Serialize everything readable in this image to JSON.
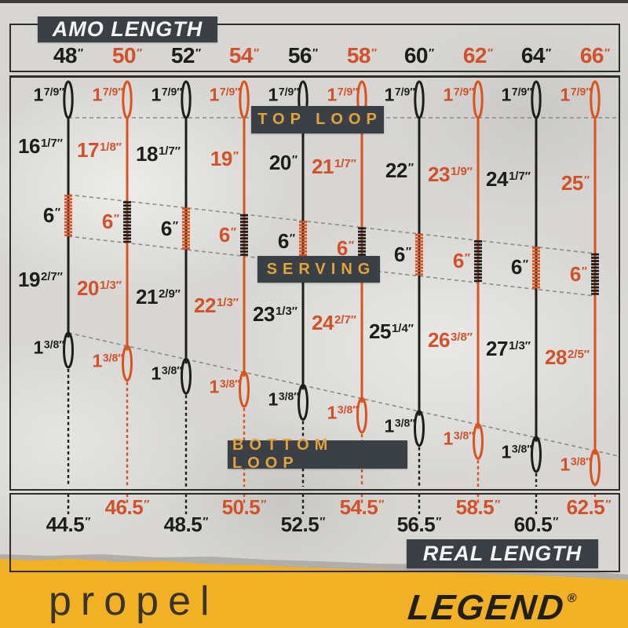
{
  "badges": {
    "amo": "AMO LENGTH",
    "top_loop": "TOP LOOP",
    "serving": "SERVING",
    "bottom_loop": "BOTTOM LOOP",
    "real": "REAL LENGTH"
  },
  "unit": "″",
  "strings": [
    {
      "amo": "48",
      "color": "black",
      "top_loop": {
        "w": "1",
        "f": "7/9"
      },
      "upper": {
        "w": "16",
        "f": "1/7"
      },
      "serving": {
        "w": "6",
        "f": ""
      },
      "lower": {
        "w": "19",
        "f": "2/7"
      },
      "bottom_loop": {
        "w": "1",
        "f": "3/8"
      },
      "real": "44.5"
    },
    {
      "amo": "50",
      "color": "orange",
      "top_loop": {
        "w": "1",
        "f": "7/9"
      },
      "upper": {
        "w": "17",
        "f": "1/8"
      },
      "serving": {
        "w": "6",
        "f": ""
      },
      "lower": {
        "w": "20",
        "f": "1/3"
      },
      "bottom_loop": {
        "w": "1",
        "f": "3/8"
      },
      "real": "46.5"
    },
    {
      "amo": "52",
      "color": "black",
      "top_loop": {
        "w": "1",
        "f": "7/9"
      },
      "upper": {
        "w": "18",
        "f": "1/7"
      },
      "serving": {
        "w": "6",
        "f": ""
      },
      "lower": {
        "w": "21",
        "f": "2/9"
      },
      "bottom_loop": {
        "w": "1",
        "f": "3/8"
      },
      "real": "48.5"
    },
    {
      "amo": "54",
      "color": "orange",
      "top_loop": {
        "w": "1",
        "f": "7/9"
      },
      "upper": {
        "w": "19",
        "f": ""
      },
      "serving": {
        "w": "6",
        "f": ""
      },
      "lower": {
        "w": "22",
        "f": "1/3"
      },
      "bottom_loop": {
        "w": "1",
        "f": "3/8"
      },
      "real": "50.5"
    },
    {
      "amo": "56",
      "color": "black",
      "top_loop": {
        "w": "1",
        "f": "7/9"
      },
      "upper": {
        "w": "20",
        "f": ""
      },
      "serving": {
        "w": "6",
        "f": ""
      },
      "lower": {
        "w": "23",
        "f": "1/3"
      },
      "bottom_loop": {
        "w": "1",
        "f": "3/8"
      },
      "real": "52.5"
    },
    {
      "amo": "58",
      "color": "orange",
      "top_loop": {
        "w": "1",
        "f": "7/9"
      },
      "upper": {
        "w": "21",
        "f": "1/7"
      },
      "serving": {
        "w": "6",
        "f": ""
      },
      "lower": {
        "w": "24",
        "f": "2/7"
      },
      "bottom_loop": {
        "w": "1",
        "f": "3/8"
      },
      "real": "54.5"
    },
    {
      "amo": "60",
      "color": "black",
      "top_loop": {
        "w": "1",
        "f": "7/9"
      },
      "upper": {
        "w": "22",
        "f": ""
      },
      "serving": {
        "w": "6",
        "f": ""
      },
      "lower": {
        "w": "25",
        "f": "1/4"
      },
      "bottom_loop": {
        "w": "1",
        "f": "3/8"
      },
      "real": "56.5"
    },
    {
      "amo": "62",
      "color": "orange",
      "top_loop": {
        "w": "1",
        "f": "7/9"
      },
      "upper": {
        "w": "23",
        "f": "1/9"
      },
      "serving": {
        "w": "6",
        "f": ""
      },
      "lower": {
        "w": "26",
        "f": "3/8"
      },
      "bottom_loop": {
        "w": "1",
        "f": "3/8"
      },
      "real": "58.5"
    },
    {
      "amo": "64",
      "color": "black",
      "top_loop": {
        "w": "1",
        "f": "7/9"
      },
      "upper": {
        "w": "24",
        "f": "1/7"
      },
      "serving": {
        "w": "6",
        "f": ""
      },
      "lower": {
        "w": "27",
        "f": "1/3"
      },
      "bottom_loop": {
        "w": "1",
        "f": "3/8"
      },
      "real": "60.5"
    },
    {
      "amo": "66",
      "color": "orange",
      "top_loop": {
        "w": "1",
        "f": "7/9"
      },
      "upper": {
        "w": "25",
        "f": ""
      },
      "serving": {
        "w": "6",
        "f": ""
      },
      "lower": {
        "w": "28",
        "f": "2/5"
      },
      "bottom_loop": {
        "w": "1",
        "f": "3/8"
      },
      "real": "62.5"
    }
  ],
  "brand": {
    "product": "propel",
    "logo": "LEGEND",
    "registered": "®"
  },
  "colors": {
    "string_black": "#1e1d1b",
    "string_orange": "#d9531e",
    "text_orange": "#d0512a",
    "slate_badge": "#3a4046",
    "gold_text": "#e2a33c",
    "footer_yellow": "#f2b025",
    "paper": "#d7d6d3"
  }
}
